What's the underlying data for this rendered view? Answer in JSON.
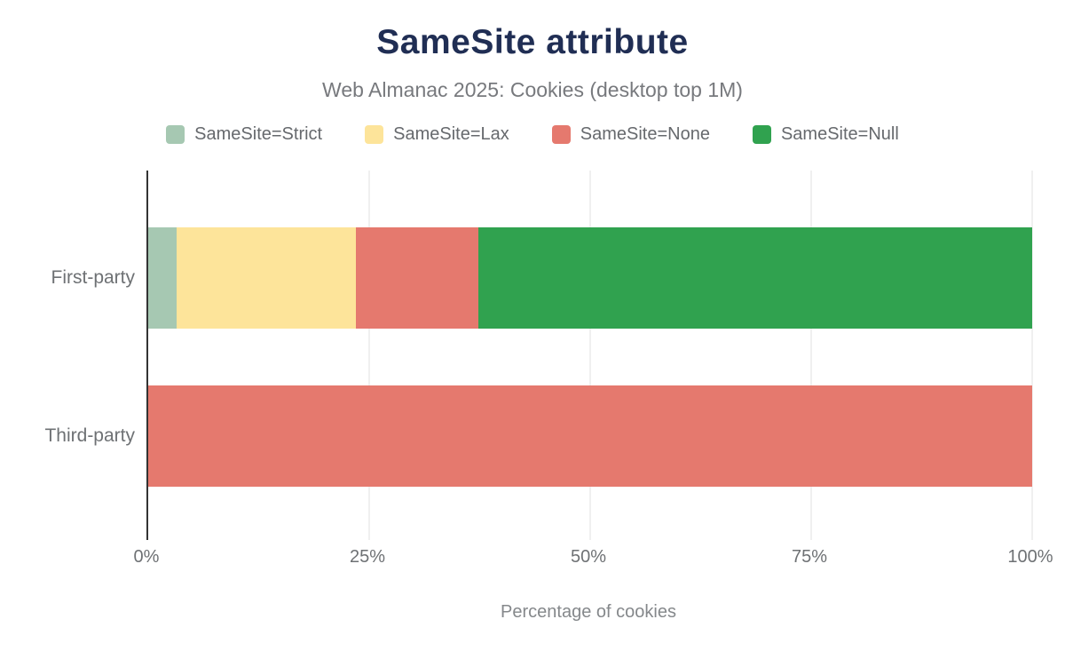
{
  "chart_data": {
    "type": "bar",
    "orientation": "horizontal",
    "stacked": true,
    "title": "SameSite attribute",
    "subtitle": "Web Almanac 2025: Cookies (desktop top 1M)",
    "categories": [
      "First-party",
      "Third-party"
    ],
    "series": [
      {
        "name": "SameSite=Strict",
        "color": "#a6c8b2",
        "values": [
          3.2,
          0
        ]
      },
      {
        "name": "SameSite=Lax",
        "color": "#fde49a",
        "values": [
          20.3,
          0
        ]
      },
      {
        "name": "SameSite=None",
        "color": "#e5796e",
        "values": [
          13.9,
          100
        ]
      },
      {
        "name": "SameSite=Null",
        "color": "#30a24f",
        "values": [
          62.6,
          0
        ]
      }
    ],
    "xlabel": "Percentage of cookies",
    "ylabel": "",
    "xlim": [
      0,
      100
    ],
    "x_ticks": [
      {
        "value": 0,
        "label": "0%"
      },
      {
        "value": 25,
        "label": "25%"
      },
      {
        "value": 50,
        "label": "50%"
      },
      {
        "value": 75,
        "label": "75%"
      },
      {
        "value": 100,
        "label": "100%"
      }
    ],
    "grid": "vertical",
    "legend_position": "top"
  },
  "colors": {
    "title": "#202e54",
    "subtitle": "#77797d",
    "axis_text": "#6e7174",
    "axis_title_text": "#85888b",
    "legend_text": "#66696d",
    "axis_line": "#333333",
    "gridline": "#f0f0f0",
    "background": "#ffffff"
  }
}
